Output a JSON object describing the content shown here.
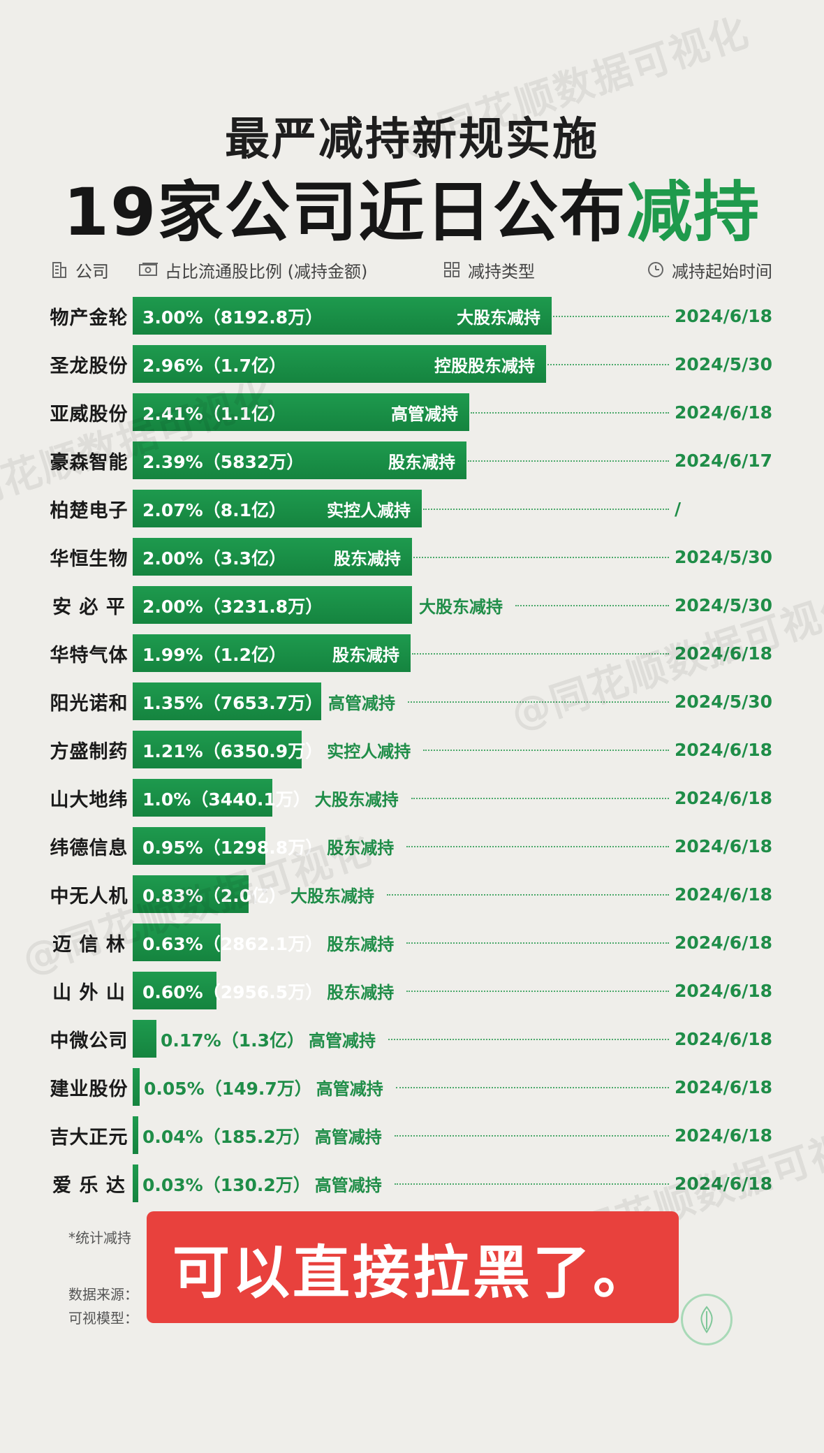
{
  "header": {
    "line1": "最严减持新规实施",
    "line2_main": "19家公司近日公布",
    "line2_highlight": "减持"
  },
  "columns": {
    "company": "公司",
    "ratio": "占比流通股比例 (减持金额)",
    "type": "减持类型",
    "start": "减持起始时间"
  },
  "watermark_text": "@同花顺数据可视化",
  "colors": {
    "bar": "#1a8f47",
    "accent": "#1f9a4c",
    "banner": "#e8413d",
    "background": "#efeeea"
  },
  "chart_data": {
    "type": "bar",
    "orientation": "horizontal",
    "categories": [
      "物产金轮",
      "圣龙股份",
      "亚威股份",
      "豪森智能",
      "柏楚电子",
      "华恒生物",
      "安 必 平",
      "华特气体",
      "阳光诺和",
      "方盛制药",
      "山大地纬",
      "纬德信息",
      "中无人机",
      "迈 信 林",
      "山 外 山",
      "中微公司",
      "建业股份",
      "吉大正元",
      "爱 乐 达"
    ],
    "values": [
      3.0,
      2.96,
      2.41,
      2.39,
      2.07,
      2.0,
      2.0,
      1.99,
      1.35,
      1.21,
      1.0,
      0.95,
      0.83,
      0.63,
      0.6,
      0.17,
      0.05,
      0.04,
      0.03
    ],
    "labels": [
      "3.00%（8192.8万）",
      "2.96%（1.7亿）",
      "2.41%（1.1亿）",
      "2.39%（5832万）",
      "2.07%（8.1亿）",
      "2.00%（3.3亿）",
      "2.00%（3231.8万）",
      "1.99%（1.2亿）",
      "1.35%（7653.7万）",
      "1.21%（6350.9万）",
      "1.0%（3440.1万）",
      "0.95%（1298.8万）",
      "0.83%（2.0亿）",
      "0.63%（2862.1万）",
      "0.60%（2956.5万）",
      "0.17%（1.3亿）",
      "0.05%（149.7万）",
      "0.04%（185.2万）",
      "0.03%（130.2万）"
    ],
    "types": [
      "大股东减持",
      "控股股东减持",
      "高管减持",
      "股东减持",
      "实控人减持",
      "股东减持",
      "大股东减持",
      "股东减持",
      "高管减持",
      "实控人减持",
      "大股东减持",
      "股东减持",
      "大股东减持",
      "股东减持",
      "股东减持",
      "高管减持",
      "高管减持",
      "高管减持",
      "高管减持"
    ],
    "dates": [
      "2024/6/18",
      "2024/5/30",
      "2024/6/18",
      "2024/6/17",
      "/",
      "2024/5/30",
      "2024/5/30",
      "2024/6/18",
      "2024/5/30",
      "2024/6/18",
      "2024/6/18",
      "2024/6/18",
      "2024/6/18",
      "2024/6/18",
      "2024/6/18",
      "2024/6/18",
      "2024/6/18",
      "2024/6/18",
      "2024/6/18"
    ],
    "xlim": [
      0,
      3.0
    ]
  },
  "footnote": "*统计减持",
  "source_label": "数据来源：",
  "model_label": "可视模型：",
  "banner_text": "可以直接拉黑了。"
}
